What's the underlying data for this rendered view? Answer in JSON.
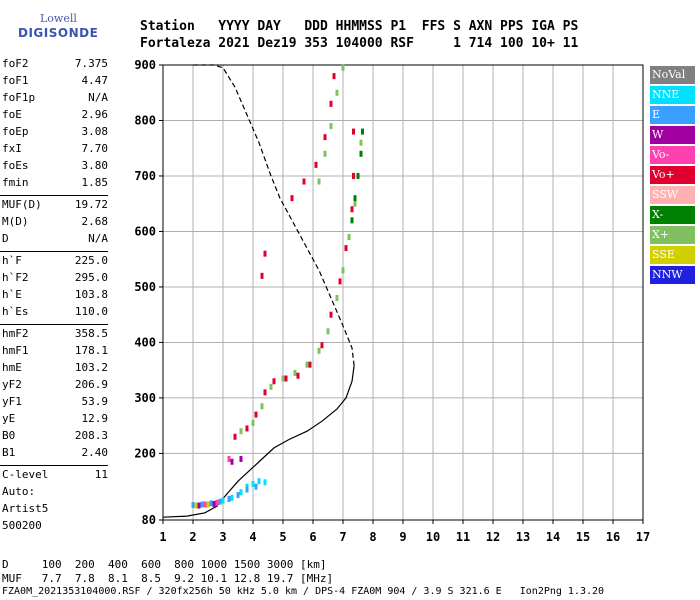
{
  "logo": {
    "line1": "Lowell",
    "line2": "DIGISONDE"
  },
  "header": {
    "labels": "Station   YYYY DAY   DDD HHMMSS P1  FFS S AXN PPS IGA PS",
    "values": "Fortaleza 2021 Dez19 353 104000 RSF     1 714 100 10+ 11"
  },
  "params": [
    {
      "group": [
        {
          "k": "foF2",
          "v": "7.375"
        },
        {
          "k": "foF1",
          "v": "4.47"
        },
        {
          "k": "foF1p",
          "v": "N/A"
        },
        {
          "k": "foE",
          "v": "2.96"
        },
        {
          "k": "foEp",
          "v": "3.08"
        },
        {
          "k": "fxI",
          "v": "7.70"
        },
        {
          "k": "foEs",
          "v": "3.80"
        },
        {
          "k": "fmin",
          "v": "1.85"
        }
      ]
    },
    {
      "group": [
        {
          "k": "MUF(D)",
          "v": "19.72"
        },
        {
          "k": "M(D)",
          "v": "2.68"
        },
        {
          "k": "D",
          "v": "N/A"
        }
      ]
    },
    {
      "group": [
        {
          "k": "h`F",
          "v": "225.0"
        },
        {
          "k": "h`F2",
          "v": "295.0"
        },
        {
          "k": "h`E",
          "v": "103.8"
        },
        {
          "k": "h`Es",
          "v": "110.0"
        }
      ]
    },
    {
      "group": [
        {
          "k": "hmF2",
          "v": "358.5"
        },
        {
          "k": "hmF1",
          "v": "178.1"
        },
        {
          "k": "hmE",
          "v": "103.2"
        },
        {
          "k": "yF2",
          "v": "206.9"
        },
        {
          "k": "yF1",
          "v": "53.9"
        },
        {
          "k": "yE",
          "v": "12.9"
        },
        {
          "k": "B0",
          "v": "208.3"
        },
        {
          "k": "B1",
          "v": "2.40"
        }
      ]
    },
    {
      "group": [
        {
          "k": "C-level",
          "v": "11"
        }
      ]
    }
  ],
  "auto": {
    "line1": "Auto:",
    "line2": "Artist5",
    "line3": "500200"
  },
  "legend": [
    {
      "name": "NoVal",
      "color": "#808080"
    },
    {
      "name": "NNE",
      "color": "#00e0ff"
    },
    {
      "name": "E",
      "color": "#3aa0ff"
    },
    {
      "name": "W",
      "color": "#a000a0"
    },
    {
      "name": "Vo-",
      "color": "#ff40b0"
    },
    {
      "name": "Vo+",
      "color": "#e00030"
    },
    {
      "name": "SSW",
      "color": "#ffb0b0"
    },
    {
      "name": "X-",
      "color": "#008000"
    },
    {
      "name": "X+",
      "color": "#80c060"
    },
    {
      "name": "SSE",
      "color": "#d0d000"
    },
    {
      "name": "NNW",
      "color": "#2020e0"
    }
  ],
  "footer": {
    "line1": "D     100  200  400  600  800 1000 1500 3000 [km]",
    "line2": "MUF   7.7  7.8  8.1  8.5  9.2 10.1 12.8 19.7 [MHz]",
    "line3": "FZA0M_2021353104000.RSF / 320fx256h 50 kHz 5.0 km / DPS-4 FZA0M 904 / 3.9 S 321.6 E   Ion2Png 1.3.20"
  },
  "chart_data": {
    "type": "scatter",
    "xlabel": "",
    "ylabel": "",
    "xlim": [
      1,
      17
    ],
    "ylim": [
      80,
      900
    ],
    "xticks": [
      1,
      2,
      3,
      4,
      5,
      6,
      7,
      8,
      9,
      10,
      11,
      12,
      13,
      14,
      15,
      16,
      17
    ],
    "yticks": [
      80,
      200,
      300,
      400,
      500,
      600,
      700,
      800,
      900
    ],
    "grid": true,
    "series": [
      {
        "name": "X+",
        "color": "#80c060",
        "points": [
          [
            3.6,
            240
          ],
          [
            4.0,
            255
          ],
          [
            4.3,
            285
          ],
          [
            4.6,
            320
          ],
          [
            5.0,
            335
          ],
          [
            5.4,
            345
          ],
          [
            5.8,
            360
          ],
          [
            6.2,
            385
          ],
          [
            6.5,
            420
          ],
          [
            6.8,
            480
          ],
          [
            7.0,
            530
          ],
          [
            7.2,
            590
          ],
          [
            7.4,
            650
          ],
          [
            7.5,
            700
          ],
          [
            7.6,
            760
          ],
          [
            6.2,
            690
          ],
          [
            6.4,
            740
          ],
          [
            6.6,
            790
          ],
          [
            6.8,
            850
          ],
          [
            7.0,
            895
          ]
        ]
      },
      {
        "name": "Vo+",
        "color": "#e00030",
        "points": [
          [
            3.4,
            230
          ],
          [
            3.8,
            245
          ],
          [
            4.1,
            270
          ],
          [
            4.4,
            310
          ],
          [
            4.7,
            330
          ],
          [
            5.1,
            335
          ],
          [
            5.5,
            340
          ],
          [
            5.9,
            360
          ],
          [
            6.3,
            395
          ],
          [
            6.6,
            450
          ],
          [
            6.9,
            510
          ],
          [
            7.1,
            570
          ],
          [
            7.3,
            640
          ],
          [
            7.35,
            700
          ],
          [
            7.35,
            780
          ],
          [
            5.3,
            660
          ],
          [
            5.7,
            690
          ],
          [
            6.1,
            720
          ],
          [
            6.4,
            770
          ],
          [
            6.6,
            830
          ],
          [
            6.7,
            880
          ],
          [
            4.3,
            520
          ],
          [
            4.4,
            560
          ]
        ]
      },
      {
        "name": "X-",
        "color": "#008000",
        "points": [
          [
            7.3,
            620
          ],
          [
            7.4,
            660
          ],
          [
            7.5,
            700
          ],
          [
            7.6,
            740
          ],
          [
            7.65,
            780
          ]
        ]
      },
      {
        "name": "NNE",
        "color": "#00e0ff",
        "points": [
          [
            3.6,
            130
          ],
          [
            3.8,
            140
          ],
          [
            4.0,
            145
          ],
          [
            4.2,
            150
          ],
          [
            4.4,
            148
          ],
          [
            3.3,
            120
          ],
          [
            3.0,
            115
          ]
        ]
      },
      {
        "name": "E",
        "color": "#3aa0ff",
        "points": [
          [
            2.0,
            107
          ],
          [
            2.3,
            108
          ],
          [
            2.6,
            110
          ],
          [
            2.9,
            113
          ],
          [
            3.2,
            118
          ],
          [
            3.5,
            125
          ],
          [
            3.8,
            135
          ],
          [
            4.1,
            140
          ]
        ]
      },
      {
        "name": "W",
        "color": "#a000a0",
        "points": [
          [
            2.2,
            106
          ],
          [
            2.7,
            109
          ],
          [
            3.3,
            185
          ],
          [
            3.6,
            190
          ]
        ]
      },
      {
        "name": "Vo-",
        "color": "#ff40b0",
        "points": [
          [
            2.4,
            108
          ],
          [
            2.8,
            111
          ],
          [
            3.2,
            190
          ]
        ]
      },
      {
        "name": "SSE",
        "color": "#d0d000",
        "points": [
          [
            2.1,
            106
          ],
          [
            2.5,
            108
          ]
        ]
      }
    ],
    "lines": [
      {
        "name": "N(h) profile",
        "style": "solid",
        "points": [
          [
            1.0,
            85
          ],
          [
            1.8,
            87
          ],
          [
            2.4,
            93
          ],
          [
            2.8,
            105
          ],
          [
            3.1,
            125
          ],
          [
            3.5,
            150
          ],
          [
            3.9,
            170
          ],
          [
            4.3,
            190
          ],
          [
            4.7,
            210
          ],
          [
            5.2,
            225
          ],
          [
            5.8,
            240
          ],
          [
            6.3,
            258
          ],
          [
            6.8,
            280
          ],
          [
            7.1,
            300
          ],
          [
            7.3,
            330
          ],
          [
            7.37,
            358
          ]
        ]
      },
      {
        "name": "profile extrapolation",
        "style": "dashed",
        "points": [
          [
            7.37,
            358
          ],
          [
            7.3,
            390
          ],
          [
            7.0,
            430
          ],
          [
            6.6,
            480
          ],
          [
            6.2,
            530
          ],
          [
            5.7,
            580
          ],
          [
            5.2,
            630
          ],
          [
            4.9,
            660
          ],
          [
            4.6,
            700
          ],
          [
            4.2,
            760
          ],
          [
            3.8,
            810
          ],
          [
            3.4,
            860
          ],
          [
            3.0,
            895
          ],
          [
            2.7,
            900
          ],
          [
            2.0,
            900
          ]
        ]
      }
    ]
  }
}
